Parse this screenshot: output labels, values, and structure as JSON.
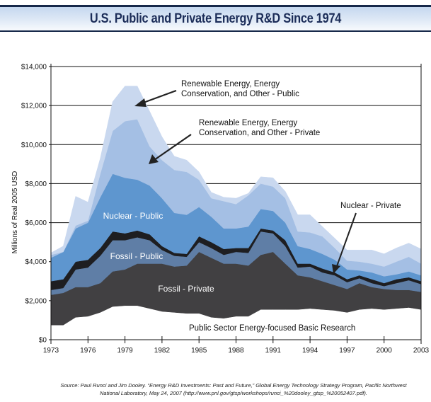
{
  "header": {
    "title": "U.S. Public and Private Energy R&D Since 1974"
  },
  "source": {
    "line1": "Source: Paul Runci and Jim Dooley. “Energy R&D Investments: Past and Future,” Global Energy Technology Strategy Program, Pacific Northwest",
    "line2": "National Laboratory, May 24, 2007 (http://www.pnl.gov/gtsp/workshops/runci_%20dooley_gtsp_%20052407.pdf)."
  },
  "chart_data": {
    "type": "area",
    "stacked": true,
    "title": "U.S. Public and Private Energy R&D Since 1974",
    "xlabel": "",
    "ylabel": "Millions of Real 2005 USD",
    "xlim": [
      1973,
      2003
    ],
    "ylim": [
      0,
      14000
    ],
    "grid": "horizontal",
    "x_ticks": [
      1973,
      1976,
      1979,
      1982,
      1985,
      1988,
      1991,
      1994,
      1997,
      2000,
      2003
    ],
    "x_tick_labels": [
      "1973",
      "1976",
      "1979",
      "1982",
      "1985",
      "1988",
      "1991",
      "1994",
      "1997",
      "2000",
      "2003"
    ],
    "y_ticks": [
      0,
      2000,
      4000,
      6000,
      8000,
      10000,
      12000,
      14000
    ],
    "y_tick_labels": [
      "$0",
      "$2,000",
      "$4,000",
      "$6,000",
      "$8,000",
      "$10,000",
      "$12,000",
      "$14,000"
    ],
    "x": [
      1973,
      1974,
      1975,
      1976,
      1977,
      1978,
      1979,
      1980,
      1981,
      1982,
      1983,
      1984,
      1985,
      1986,
      1987,
      1988,
      1989,
      1990,
      1991,
      1992,
      1993,
      1994,
      1995,
      1996,
      1997,
      1998,
      1999,
      2000,
      2001,
      2002,
      2003
    ],
    "series": [
      {
        "name": "Public Sector Energy-focused Basic Research",
        "color": "#ffffff",
        "values": [
          750,
          750,
          1150,
          1200,
          1400,
          1700,
          1750,
          1750,
          1600,
          1450,
          1400,
          1350,
          1350,
          1150,
          1100,
          1200,
          1200,
          1550,
          1550,
          1550,
          1550,
          1600,
          1550,
          1500,
          1400,
          1550,
          1600,
          1550,
          1600,
          1650,
          1550
        ]
      },
      {
        "name": "Fossil - Private",
        "color": "#414042",
        "values": [
          1550,
          1650,
          1550,
          1500,
          1500,
          1800,
          1850,
          2150,
          2300,
          2450,
          2350,
          2450,
          3150,
          3050,
          2800,
          2700,
          2600,
          2800,
          2950,
          2350,
          1750,
          1600,
          1450,
          1300,
          1200,
          1350,
          1100,
          1050,
          950,
          900,
          900
        ]
      },
      {
        "name": "Fossil - Public",
        "color": "#5f7ea6",
        "values": [
          250,
          250,
          900,
          1000,
          1400,
          1600,
          1500,
          1350,
          1200,
          700,
          550,
          450,
          500,
          500,
          450,
          600,
          650,
          1200,
          950,
          900,
          400,
          550,
          450,
          500,
          350,
          250,
          200,
          150,
          350,
          500,
          400
        ]
      },
      {
        "name": "Nuclear - Private",
        "color": "#1e1e21",
        "values": [
          450,
          450,
          400,
          400,
          400,
          450,
          350,
          350,
          300,
          200,
          150,
          150,
          300,
          300,
          300,
          200,
          250,
          150,
          150,
          300,
          200,
          150,
          200,
          150,
          150,
          150,
          200,
          150,
          200,
          150,
          150
        ]
      },
      {
        "name": "Nuclear - Public",
        "color": "#5e96cf",
        "values": [
          1200,
          1400,
          1700,
          1900,
          2600,
          2950,
          2850,
          2600,
          2500,
          2450,
          2050,
          2000,
          1500,
          1300,
          1050,
          1000,
          1100,
          1000,
          1000,
          900,
          900,
          750,
          750,
          650,
          500,
          250,
          350,
          350,
          250,
          300,
          300
        ]
      },
      {
        "name": "Renewable Energy, Energy Conservation, and Other - Private",
        "color": "#a4bfe4",
        "values": [
          150,
          0,
          150,
          100,
          1200,
          2200,
          2900,
          3100,
          2000,
          1950,
          2200,
          2200,
          1400,
          950,
          1400,
          1250,
          1600,
          1300,
          1250,
          1250,
          750,
          850,
          900,
          600,
          450,
          450,
          450,
          500,
          650,
          750,
          600
        ]
      },
      {
        "name": "Renewable Energy, Energy Conservation, and Other - Public",
        "color": "#c9d8ef",
        "values": [
          100,
          300,
          1500,
          950,
          800,
          1500,
          1800,
          1700,
          1800,
          1200,
          700,
          600,
          400,
          300,
          200,
          300,
          100,
          350,
          450,
          350,
          850,
          900,
          500,
          500,
          550,
          600,
          700,
          650,
          700,
          700,
          750
        ]
      }
    ],
    "annotations": [
      {
        "text_lines": [
          "Renewable Energy, Energy",
          "Conservation, and Other - Public"
        ],
        "arrow": true
      },
      {
        "text_lines": [
          "Renewable Energy, Energy",
          "Conservation, and Other - Private"
        ],
        "arrow": true
      },
      {
        "text_lines": [
          "Nuclear - Private"
        ],
        "arrow": true
      },
      {
        "text_lines": [
          "Nuclear - Public"
        ],
        "arrow": false
      },
      {
        "text_lines": [
          "Fossil - Public"
        ],
        "arrow": false
      },
      {
        "text_lines": [
          "Fossil - Private"
        ],
        "arrow": false
      },
      {
        "text_lines": [
          "Public Sector Energy-focused Basic Research"
        ],
        "arrow": false
      }
    ]
  }
}
